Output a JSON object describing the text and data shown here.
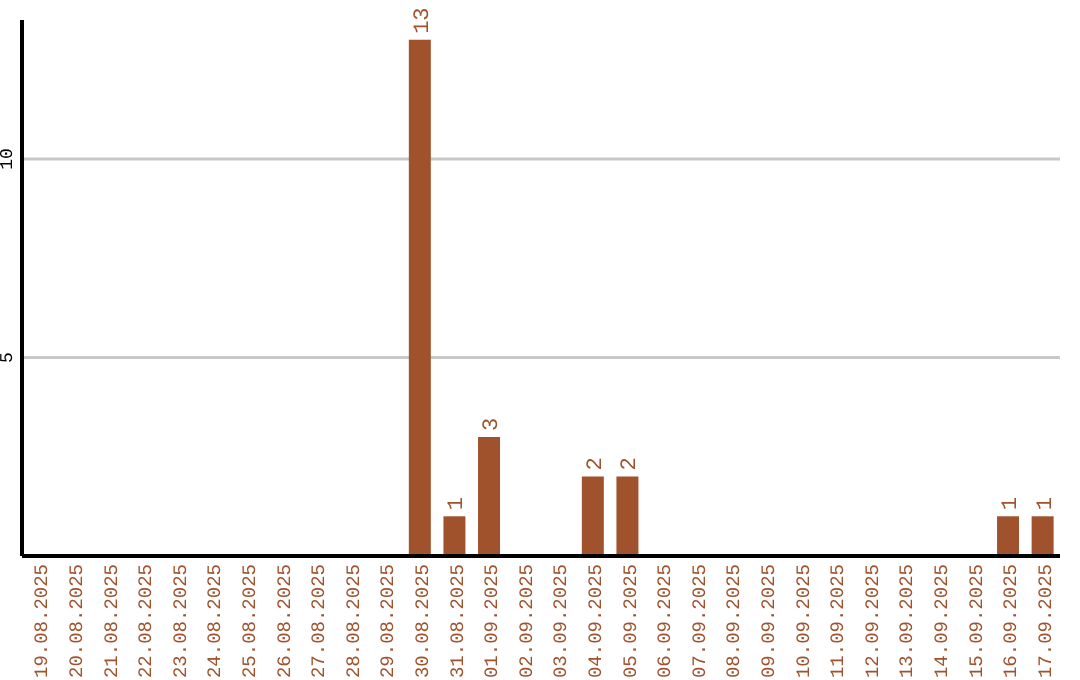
{
  "chart_data": {
    "type": "bar",
    "categories": [
      "19.08.2025",
      "20.08.2025",
      "21.08.2025",
      "22.08.2025",
      "23.08.2025",
      "24.08.2025",
      "25.08.2025",
      "26.08.2025",
      "27.08.2025",
      "28.08.2025",
      "29.08.2025",
      "30.08.2025",
      "31.08.2025",
      "01.09.2025",
      "02.09.2025",
      "03.09.2025",
      "04.09.2025",
      "05.09.2025",
      "06.09.2025",
      "07.09.2025",
      "08.09.2025",
      "09.09.2025",
      "10.09.2025",
      "11.09.2025",
      "12.09.2025",
      "13.09.2025",
      "14.09.2025",
      "15.09.2025",
      "16.09.2025",
      "17.09.2025"
    ],
    "values": [
      0,
      0,
      0,
      0,
      0,
      0,
      0,
      0,
      0,
      0,
      0,
      13,
      1,
      3,
      0,
      0,
      2,
      2,
      0,
      0,
      0,
      0,
      0,
      0,
      0,
      0,
      0,
      0,
      1,
      1
    ],
    "value_labels": [
      null,
      null,
      null,
      null,
      null,
      null,
      null,
      null,
      null,
      null,
      null,
      "13",
      "1",
      "3",
      null,
      null,
      "2",
      "2",
      null,
      null,
      null,
      null,
      null,
      null,
      null,
      null,
      null,
      null,
      "1",
      "1"
    ],
    "color": "#a0522d",
    "ylim": [
      0,
      13.5
    ],
    "yticks": [
      5,
      10
    ],
    "grid": "y"
  }
}
